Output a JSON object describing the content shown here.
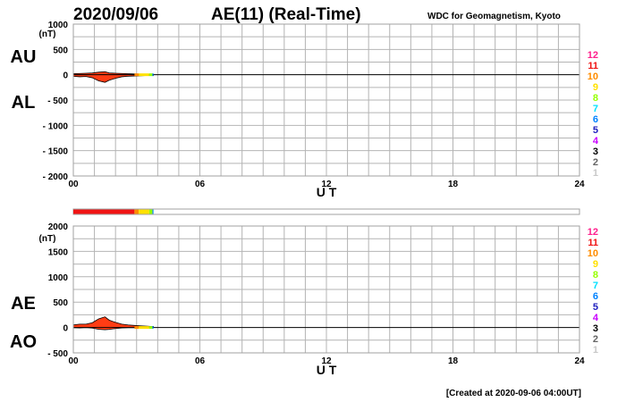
{
  "header": {
    "date": "2020/09/06",
    "title": "AE(11) (Real-Time)",
    "source": "WDC for Geomagnetism, Kyoto"
  },
  "footer": {
    "created": "[Created at 2020-09-06 04:00UT]"
  },
  "colors": {
    "background": "#ffffff",
    "grid": "#b4b4b4",
    "frame": "#a0a0a0",
    "zero_line": "#000000",
    "main_fill": "#ff3c14",
    "outline": "#000000"
  },
  "station_count_legend": [
    {
      "label": "12",
      "color": "#ff1e8c"
    },
    {
      "label": "11",
      "color": "#f01414"
    },
    {
      "label": "10",
      "color": "#ff8c00"
    },
    {
      "label": "9",
      "color": "#ffe100"
    },
    {
      "label": "8",
      "color": "#96ff00"
    },
    {
      "label": "7",
      "color": "#00e1ff"
    },
    {
      "label": "6",
      "color": "#0082ff"
    },
    {
      "label": "5",
      "color": "#1e1ebe"
    },
    {
      "label": "4",
      "color": "#c800ff"
    },
    {
      "label": "3",
      "color": "#000000"
    },
    {
      "label": "2",
      "color": "#646464"
    },
    {
      "label": "1",
      "color": "#c8c8c8"
    }
  ],
  "chart_data": [
    {
      "type": "area",
      "ylabel_unit": "(nT)",
      "xlabel": "U T",
      "series_labels": [
        "AU",
        "AL"
      ],
      "ylim": [
        -2000,
        1000
      ],
      "yticks": [
        1000,
        500,
        0,
        -500,
        -1000,
        -1500,
        -2000
      ],
      "ytick_labels": [
        "1000",
        "500",
        "0",
        "- 500",
        "- 1000",
        "- 1500",
        "- 2000"
      ],
      "xlim": [
        0,
        24
      ],
      "xticks": [
        0,
        6,
        12,
        18,
        24
      ],
      "xtick_labels": [
        "00",
        "06",
        "12",
        "18",
        "24"
      ],
      "grid": true,
      "series": [
        {
          "name": "AU",
          "x": [
            0,
            0.3,
            0.6,
            0.9,
            1.2,
            1.5,
            1.7,
            2.0,
            2.3,
            2.6,
            2.9,
            3.2,
            3.5,
            3.8
          ],
          "values": [
            20,
            25,
            30,
            35,
            50,
            60,
            35,
            30,
            25,
            20,
            15,
            12,
            10,
            8
          ]
        },
        {
          "name": "AL",
          "x": [
            0,
            0.3,
            0.6,
            0.9,
            1.2,
            1.5,
            1.7,
            2.0,
            2.3,
            2.6,
            2.9,
            3.2,
            3.5,
            3.8
          ],
          "values": [
            -30,
            -40,
            -35,
            -60,
            -120,
            -150,
            -110,
            -70,
            -40,
            -30,
            -25,
            -20,
            -15,
            -10
          ]
        }
      ]
    },
    {
      "type": "area",
      "ylabel_unit": "(nT)",
      "xlabel": "U T",
      "series_labels": [
        "AE",
        "AO"
      ],
      "ylim": [
        -500,
        2000
      ],
      "yticks": [
        2000,
        1500,
        1000,
        500,
        0,
        -500
      ],
      "ytick_labels": [
        "2000",
        "1500",
        "1000",
        "500",
        "0",
        "- 500"
      ],
      "xlim": [
        0,
        24
      ],
      "xticks": [
        0,
        6,
        12,
        18,
        24
      ],
      "xtick_labels": [
        "00",
        "06",
        "12",
        "18",
        "24"
      ],
      "grid": true,
      "series": [
        {
          "name": "AE",
          "x": [
            0,
            0.3,
            0.6,
            0.9,
            1.2,
            1.5,
            1.7,
            2.0,
            2.3,
            2.6,
            2.9,
            3.2,
            3.5,
            3.8
          ],
          "values": [
            50,
            65,
            65,
            95,
            170,
            210,
            145,
            100,
            65,
            50,
            40,
            32,
            25,
            18
          ]
        },
        {
          "name": "AO",
          "x": [
            0,
            0.3,
            0.6,
            0.9,
            1.2,
            1.5,
            1.7,
            2.0,
            2.3,
            2.6,
            2.9,
            3.2,
            3.5,
            3.8
          ],
          "values": [
            -5,
            -8,
            -3,
            -12,
            -35,
            -45,
            -38,
            -20,
            -8,
            -5,
            -5,
            -4,
            -3,
            -1
          ]
        }
      ]
    },
    {
      "type": "heatmap",
      "description_key": "station_count_bar",
      "xlim": [
        0,
        24
      ],
      "segments": [
        {
          "start": 0,
          "end": 2.9,
          "stations": 11
        },
        {
          "start": 2.9,
          "end": 3.1,
          "stations": 10
        },
        {
          "start": 3.1,
          "end": 3.6,
          "stations": 9
        },
        {
          "start": 3.6,
          "end": 3.75,
          "stations": 8
        },
        {
          "start": 3.75,
          "end": 3.8,
          "stations": 6
        }
      ]
    }
  ]
}
